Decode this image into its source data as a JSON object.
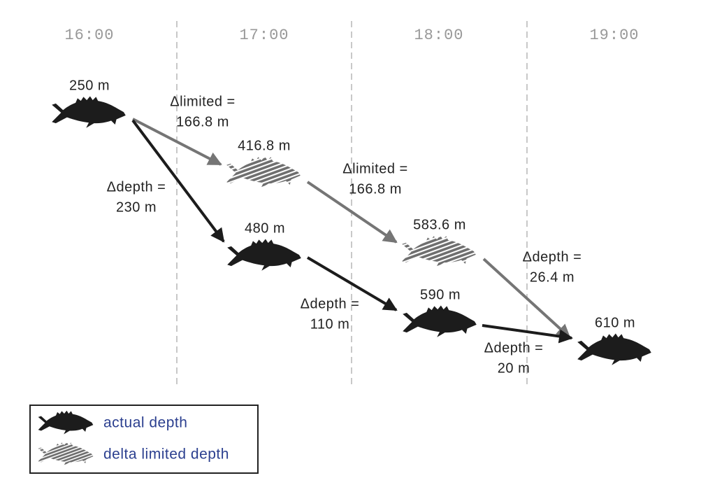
{
  "times": [
    "16:00",
    "17:00",
    "18:00",
    "19:00"
  ],
  "nodes": [
    {
      "label": "250 m"
    },
    {
      "label": "416.8 m"
    },
    {
      "label": "480 m"
    },
    {
      "label": "583.6 m"
    },
    {
      "label": "590 m"
    },
    {
      "label": "610 m"
    }
  ],
  "edges": [
    {
      "label": [
        "Δlimited =",
        "166.8 m"
      ]
    },
    {
      "label": [
        "Δdepth =",
        "230 m"
      ]
    },
    {
      "label": [
        "Δlimited =",
        "166.8 m"
      ]
    },
    {
      "label": [
        "Δdepth =",
        "110 m"
      ]
    },
    {
      "label": [
        "Δdepth =",
        "26.4 m"
      ]
    },
    {
      "label": [
        "Δdepth =",
        "20 m"
      ]
    }
  ],
  "legend": [
    {
      "label": "actual depth"
    },
    {
      "label": "delta limited depth"
    }
  ]
}
